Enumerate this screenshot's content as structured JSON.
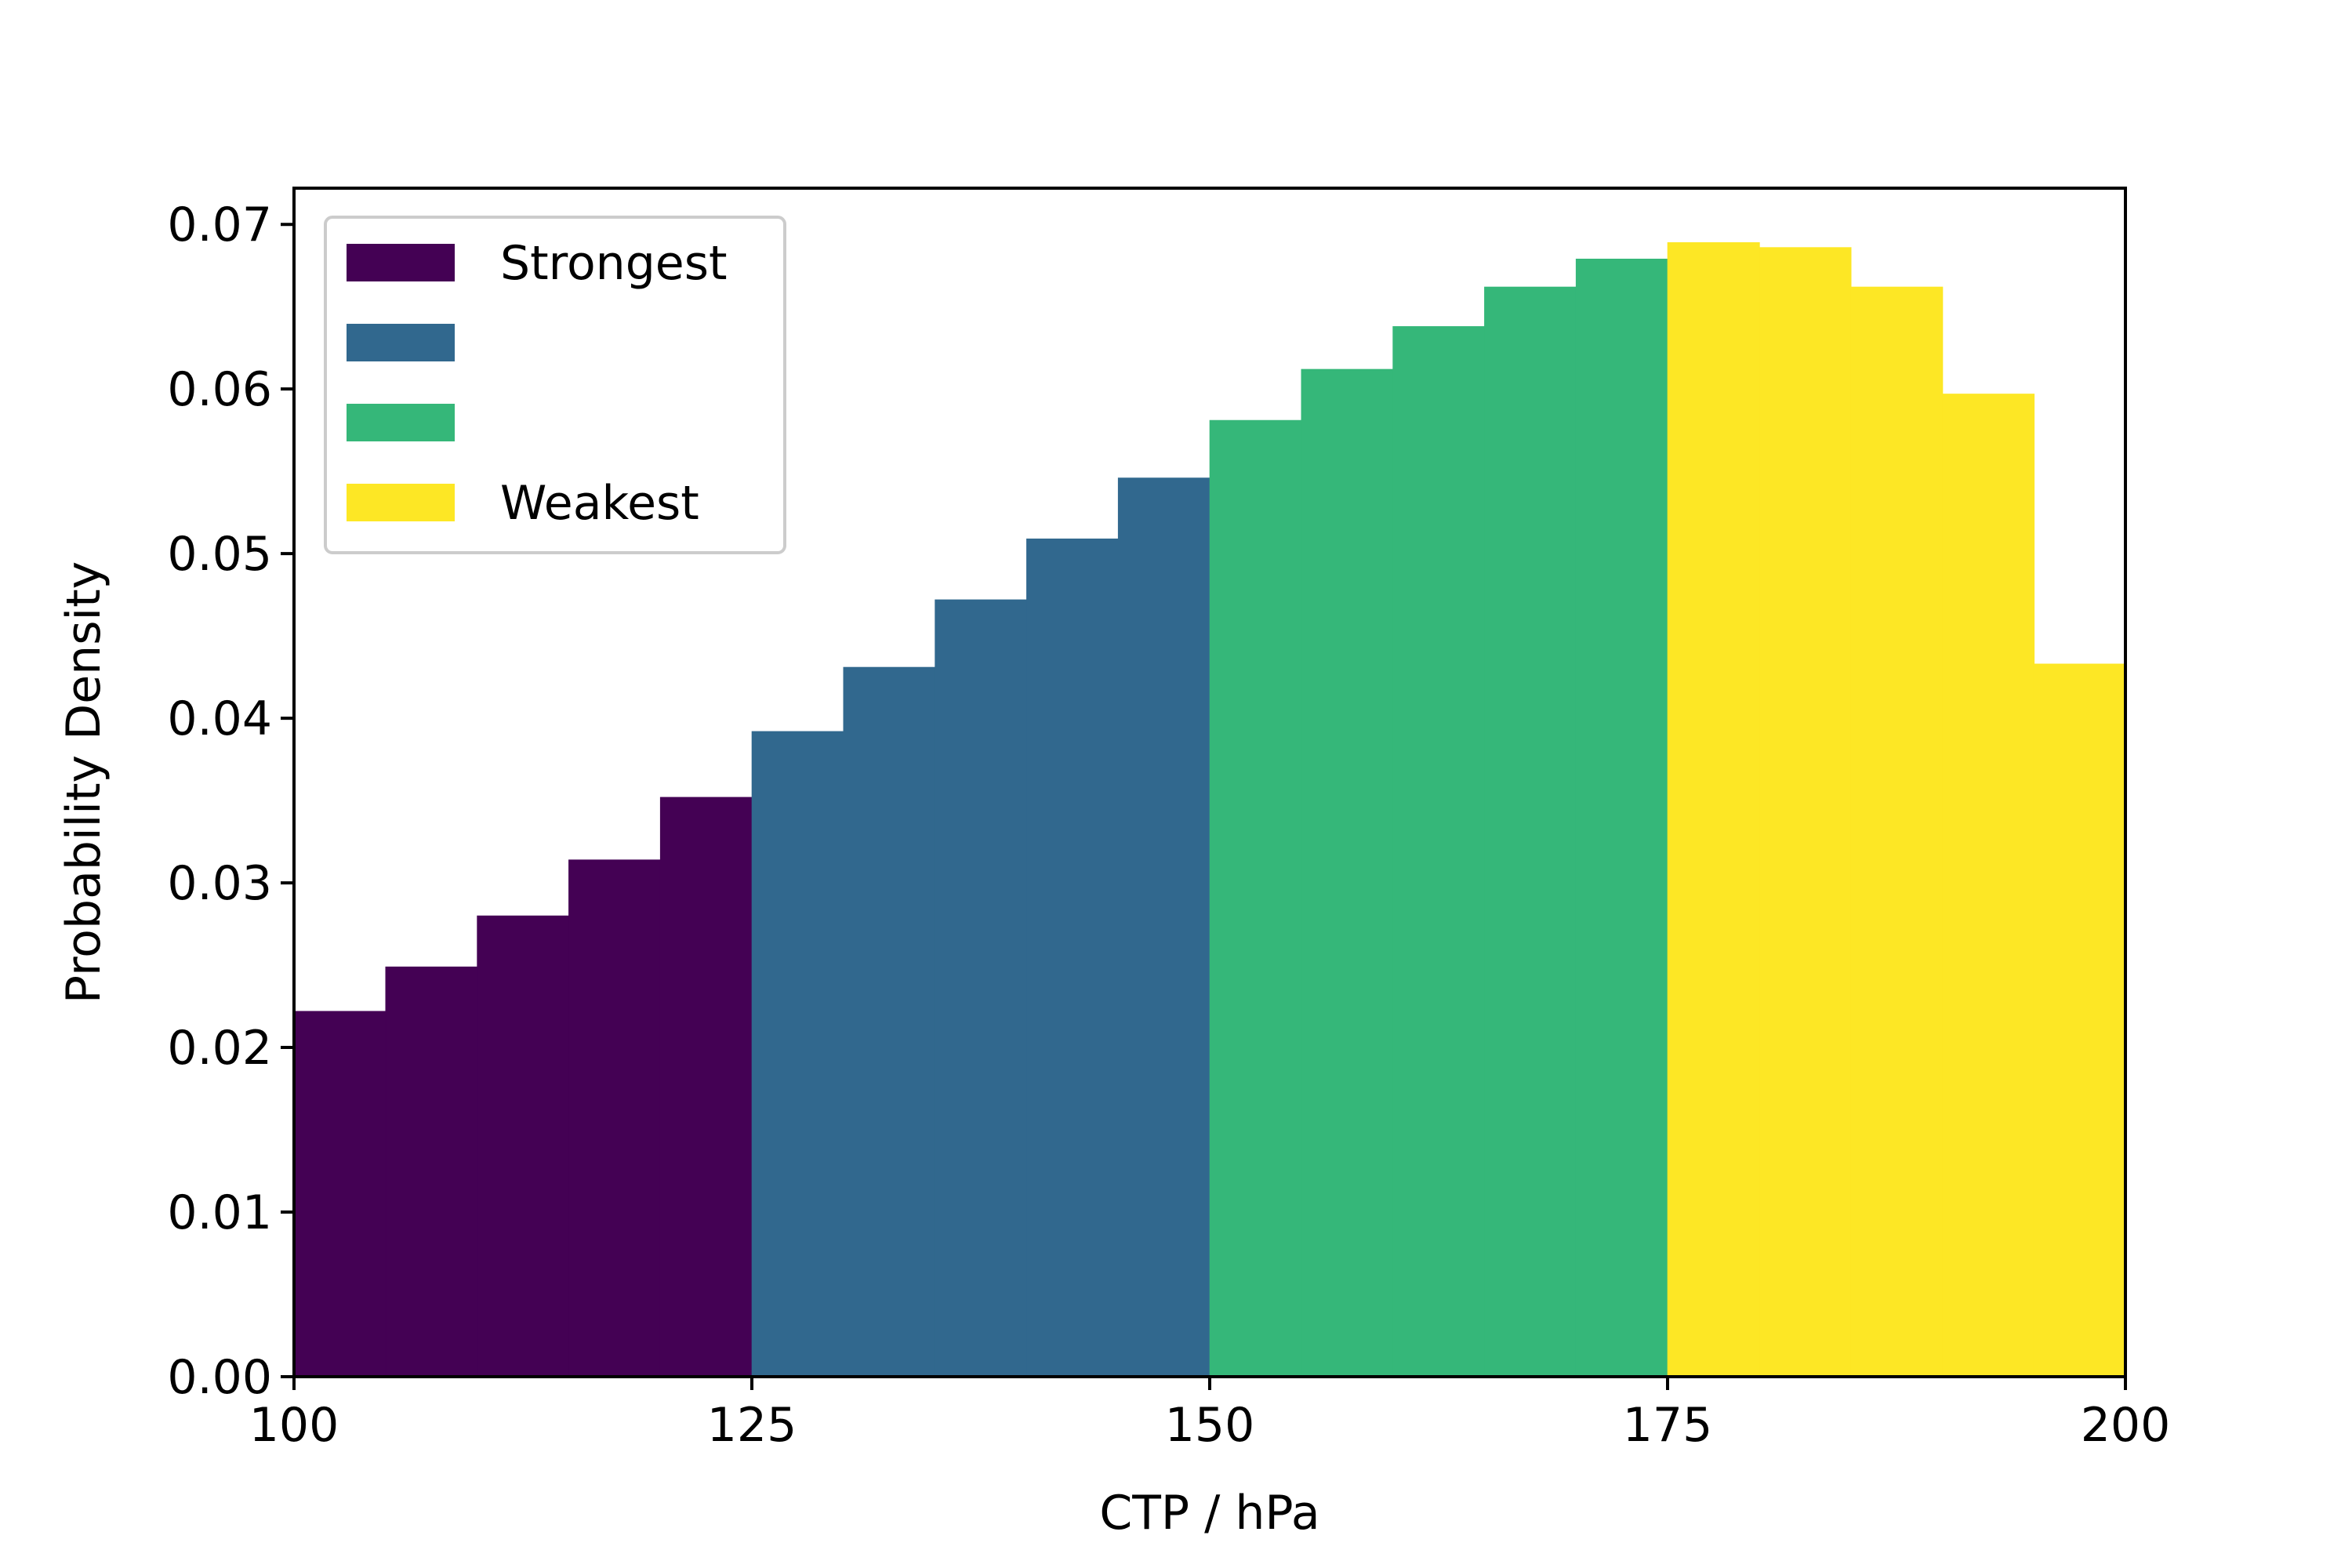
{
  "chart_data": {
    "type": "bar",
    "xlabel": "CTP / hPa",
    "ylabel": "Probability Density",
    "xlim": [
      100,
      200
    ],
    "ylim": [
      0,
      0.0722
    ],
    "xticks": [
      {
        "value": 100,
        "label": "100"
      },
      {
        "value": 125,
        "label": "125"
      },
      {
        "value": 150,
        "label": "150"
      },
      {
        "value": 175,
        "label": "175"
      },
      {
        "value": 200,
        "label": "200"
      }
    ],
    "yticks": [
      {
        "value": 0.0,
        "label": "0.00"
      },
      {
        "value": 0.01,
        "label": "0.01"
      },
      {
        "value": 0.02,
        "label": "0.02"
      },
      {
        "value": 0.03,
        "label": "0.03"
      },
      {
        "value": 0.04,
        "label": "0.04"
      },
      {
        "value": 0.05,
        "label": "0.05"
      },
      {
        "value": 0.06,
        "label": "0.06"
      },
      {
        "value": 0.07,
        "label": "0.07"
      }
    ],
    "grid": false,
    "legend_position": "top-left",
    "bin_edges": [
      100,
      105,
      110,
      115,
      120,
      125,
      130,
      135,
      140,
      145,
      150,
      155,
      160,
      165,
      170,
      175,
      180,
      185,
      190,
      195,
      200
    ],
    "values": [
      0.0222,
      0.0249,
      0.028,
      0.0314,
      0.0352,
      0.0392,
      0.0431,
      0.0472,
      0.0509,
      0.0546,
      0.0581,
      0.0612,
      0.0638,
      0.0662,
      0.0679,
      0.0689,
      0.0686,
      0.0662,
      0.0597,
      0.0433
    ],
    "series": [
      {
        "name": "Strongest",
        "color": "#440154",
        "x_range": [
          100,
          125
        ]
      },
      {
        "name": "",
        "color": "#31688e",
        "x_range": [
          125,
          150
        ]
      },
      {
        "name": "",
        "color": "#35b779",
        "x_range": [
          150,
          175
        ]
      },
      {
        "name": "Weakest",
        "color": "#fde725",
        "x_range": [
          175,
          200
        ]
      }
    ]
  }
}
